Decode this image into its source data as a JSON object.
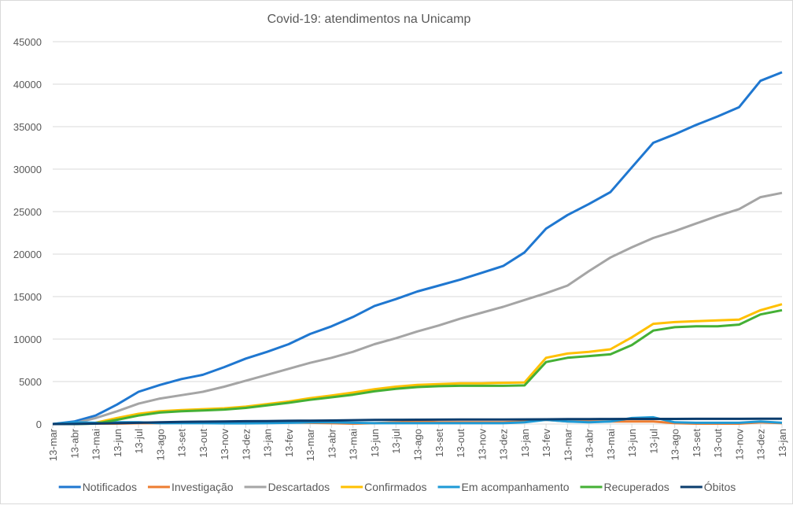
{
  "chart_data": {
    "type": "line",
    "title": "Covid-19: atendimentos  na Unicamp",
    "xlabel": "",
    "ylabel": "",
    "ylim": [
      0,
      45000
    ],
    "yticks": [
      "0",
      "5000",
      "10000",
      "15000",
      "20000",
      "25000",
      "30000",
      "35000",
      "40000",
      "45000"
    ],
    "ytick_values": [
      0,
      5000,
      10000,
      15000,
      20000,
      25000,
      30000,
      35000,
      40000,
      45000
    ],
    "grid": true,
    "legend_position": "bottom",
    "x": [
      "13-mar",
      "13-abr",
      "13-mai",
      "13-jun",
      "13-jul",
      "13-ago",
      "13-set",
      "13-out",
      "13-nov",
      "13-dez",
      "13-jan",
      "13-fev",
      "13-mar",
      "13-abr",
      "13-mai",
      "13-jun",
      "13-jul",
      "13-ago",
      "13-set",
      "13-out",
      "13-nov",
      "13-dez",
      "13-jan",
      "13-fev",
      "13-mar",
      "13-abr",
      "13-mai",
      "13-jun",
      "13-jul",
      "13-ago",
      "13-set",
      "13-out",
      "13-nov",
      "13-dez",
      "13-jan"
    ],
    "series": [
      {
        "name": "Notificados",
        "color": "#1f77d0",
        "values": [
          0,
          300,
          1000,
          2300,
          3800,
          4600,
          5300,
          5800,
          6700,
          7700,
          8500,
          9400,
          10600,
          11500,
          12600,
          13900,
          14700,
          15600,
          16300,
          17000,
          17800,
          18600,
          20200,
          23000,
          24600,
          25900,
          27300,
          30200,
          33100,
          34100,
          35200,
          36200,
          37300,
          40400,
          41400
        ]
      },
      {
        "name": "Investigação",
        "color": "#ed7d31",
        "values": [
          0,
          50,
          50,
          50,
          100,
          100,
          150,
          200,
          200,
          200,
          200,
          200,
          150,
          100,
          50,
          100,
          200,
          300,
          200,
          200,
          200,
          200,
          300,
          500,
          300,
          300,
          300,
          300,
          300,
          100,
          50,
          50,
          50,
          200,
          100
        ]
      },
      {
        "name": "Descartados",
        "color": "#a5a5a5",
        "values": [
          0,
          100,
          700,
          1500,
          2400,
          3000,
          3400,
          3800,
          4400,
          5100,
          5800,
          6500,
          7200,
          7800,
          8500,
          9400,
          10100,
          10900,
          11600,
          12400,
          13100,
          13800,
          14600,
          15400,
          16300,
          18000,
          19600,
          20800,
          21900,
          22700,
          23600,
          24500,
          25300,
          26700,
          27200
        ]
      },
      {
        "name": "Confirmados",
        "color": "#ffc000",
        "values": [
          0,
          0,
          150,
          700,
          1200,
          1500,
          1650,
          1750,
          1850,
          2050,
          2350,
          2650,
          3050,
          3350,
          3700,
          4100,
          4400,
          4600,
          4700,
          4800,
          4800,
          4850,
          4900,
          7800,
          8300,
          8500,
          8800,
          10200,
          11800,
          12000,
          12100,
          12200,
          12300,
          13400,
          14100
        ]
      },
      {
        "name": "Em acompanhamento",
        "color": "#1e9ad6",
        "values": [
          0,
          200,
          150,
          200,
          200,
          100,
          100,
          100,
          80,
          80,
          100,
          150,
          200,
          200,
          150,
          100,
          100,
          100,
          100,
          100,
          100,
          100,
          200,
          500,
          300,
          200,
          300,
          700,
          800,
          200,
          150,
          150,
          150,
          300,
          150
        ]
      },
      {
        "name": "Recuperados",
        "color": "#44b035",
        "values": [
          0,
          0,
          50,
          500,
          1000,
          1350,
          1500,
          1600,
          1700,
          1900,
          2200,
          2500,
          2850,
          3150,
          3450,
          3850,
          4150,
          4350,
          4450,
          4500,
          4500,
          4500,
          4550,
          7300,
          7800,
          8000,
          8200,
          9300,
          11000,
          11400,
          11500,
          11500,
          11700,
          12900,
          13400
        ]
      },
      {
        "name": "Óbitos",
        "color": "#0b3d6e",
        "values": [
          0,
          10,
          60,
          100,
          150,
          200,
          250,
          280,
          300,
          330,
          350,
          380,
          400,
          420,
          450,
          480,
          500,
          510,
          520,
          530,
          540,
          540,
          550,
          560,
          570,
          580,
          590,
          600,
          600,
          600,
          610,
          610,
          610,
          620,
          620
        ]
      }
    ]
  }
}
